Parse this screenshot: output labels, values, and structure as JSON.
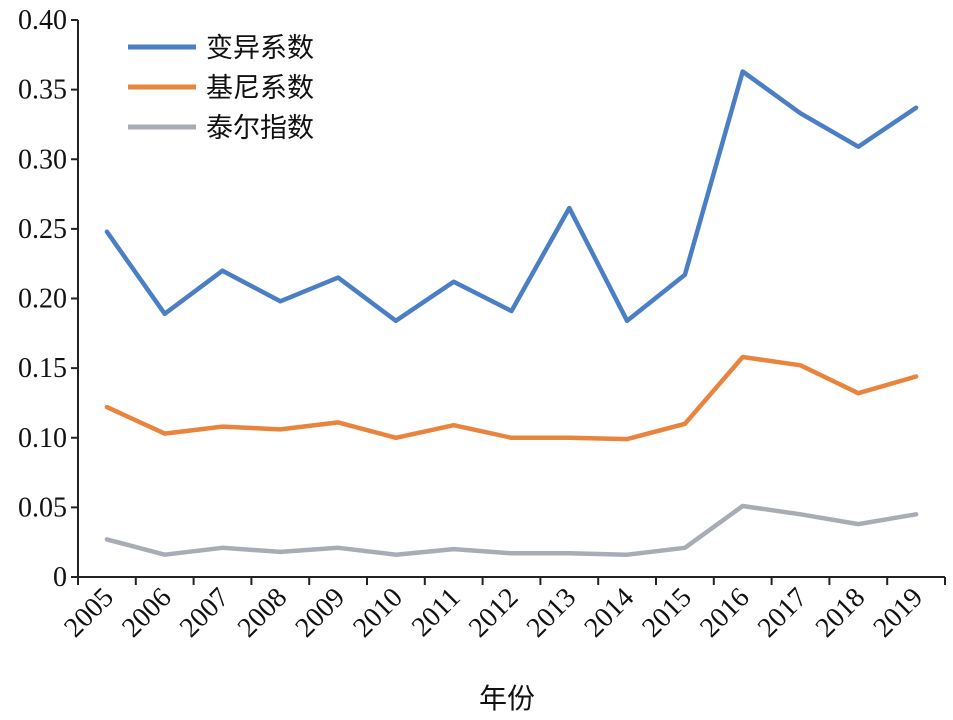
{
  "chart_data": {
    "type": "line",
    "title": "",
    "xlabel": "年份",
    "ylabel": "",
    "categories": [
      "2005",
      "2006",
      "2007",
      "2008",
      "2009",
      "2010",
      "2011",
      "2012",
      "2013",
      "2014",
      "2015",
      "2016",
      "2017",
      "2018",
      "2019"
    ],
    "ylim": [
      0,
      0.4
    ],
    "y_ticks": [
      "0",
      "0.05",
      "0.10",
      "0.15",
      "0.20",
      "0.25",
      "0.30",
      "0.35",
      "0.40"
    ],
    "legend_position": "top-left",
    "grid": false,
    "series": [
      {
        "name": "变异系数",
        "color": "#4a7ec5",
        "values": [
          0.248,
          0.189,
          0.22,
          0.198,
          0.215,
          0.184,
          0.212,
          0.191,
          0.265,
          0.184,
          0.217,
          0.363,
          0.333,
          0.309,
          0.337
        ]
      },
      {
        "name": "基尼系数",
        "color": "#e9843e",
        "values": [
          0.122,
          0.103,
          0.108,
          0.106,
          0.111,
          0.1,
          0.109,
          0.1,
          0.1,
          0.099,
          0.11,
          0.158,
          0.152,
          0.132,
          0.144
        ]
      },
      {
        "name": "泰尔指数",
        "color": "#a8acb4",
        "values": [
          0.027,
          0.016,
          0.021,
          0.018,
          0.021,
          0.016,
          0.02,
          0.017,
          0.017,
          0.016,
          0.021,
          0.051,
          0.045,
          0.038,
          0.045
        ]
      }
    ]
  }
}
